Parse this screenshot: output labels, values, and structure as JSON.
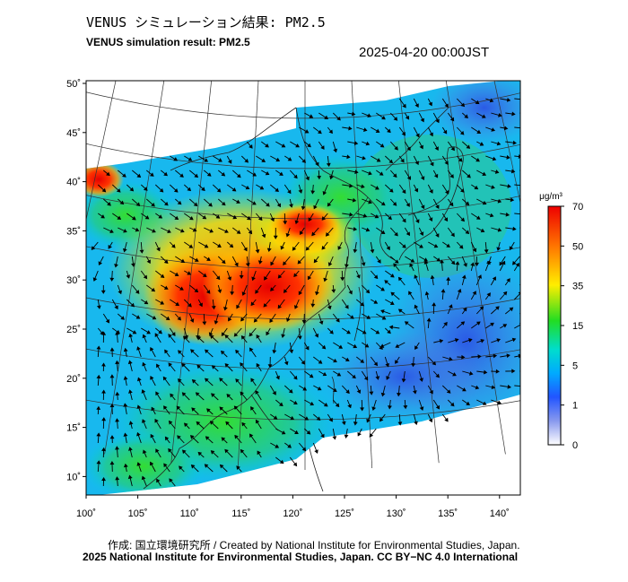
{
  "header": {
    "title_ja": "VENUS シミュレーション結果: PM2.5",
    "title_en": "VENUS simulation result: PM2.5",
    "timestamp": "2025-04-20 00:00JST"
  },
  "map": {
    "lat_ticks": [
      "50˚",
      "45˚",
      "40˚",
      "35˚",
      "30˚",
      "25˚",
      "20˚",
      "15˚",
      "10˚"
    ],
    "lon_ticks": [
      "100˚",
      "105˚",
      "110˚",
      "115˚",
      "120˚",
      "125˚",
      "130˚",
      "135˚",
      "140˚"
    ],
    "lon_range": [
      100,
      141
    ],
    "lat_range": [
      9,
      51
    ]
  },
  "colorbar": {
    "unit": "μg/m³",
    "labels": [
      "70",
      "50",
      "35",
      "15",
      "5",
      "1",
      "0"
    ],
    "colors": [
      "#ff0000",
      "#ff8800",
      "#ffee00",
      "#22dd22",
      "#00ccff",
      "#2255ff",
      "#ffffff"
    ]
  },
  "footer": {
    "credit_ja": "作成: 国立環境研究所 / Created by National Institute for Environmental Studies, Japan.",
    "credit_en": "2025 National Institute for Environmental Studies, Japan. CC BY−NC 4.0 International"
  }
}
